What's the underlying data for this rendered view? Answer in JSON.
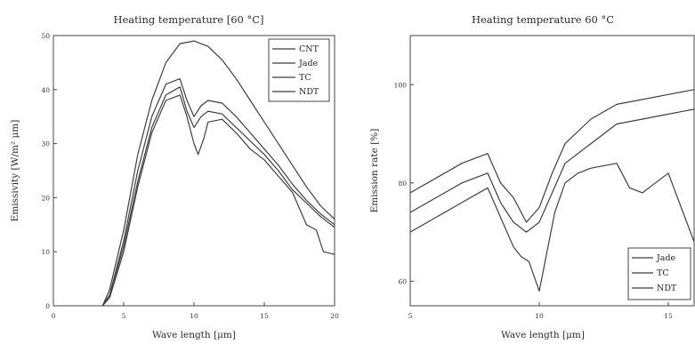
{
  "chart_data": [
    {
      "type": "line",
      "title": "Heating temperature [60 °C]",
      "xlabel": "Wave length [μm]",
      "ylabel": "Emissivity [W/m² μm]",
      "xlim": [
        0,
        20
      ],
      "ylim": [
        0,
        50
      ],
      "xticks": [
        "0",
        "5",
        "10",
        "15",
        "20"
      ],
      "yticks": [
        "0",
        "10",
        "20",
        "30",
        "40",
        "50"
      ],
      "legend": "top-right",
      "series": [
        {
          "name": "CNT",
          "x": [
            3.5,
            4,
            5,
            6,
            7,
            8,
            9,
            10,
            11,
            12,
            13,
            14,
            15,
            16,
            17,
            18,
            19,
            20
          ],
          "y": [
            0,
            3,
            14,
            28,
            38,
            45,
            48.5,
            49,
            48,
            45.5,
            42,
            38,
            34,
            30,
            26,
            22,
            18.5,
            16
          ]
        },
        {
          "name": "Jade",
          "x": [
            3.5,
            4,
            5,
            6,
            7,
            8,
            9,
            9.5,
            10,
            10.5,
            11,
            12,
            13,
            14,
            15,
            16,
            17,
            18,
            19,
            20
          ],
          "y": [
            0,
            2,
            12,
            25,
            35,
            41,
            42,
            38,
            35,
            37,
            38,
            37.5,
            35,
            32,
            29,
            26,
            22.5,
            19.5,
            17,
            15
          ]
        },
        {
          "name": "TC",
          "x": [
            3.5,
            4,
            5,
            6,
            7,
            8,
            9,
            9.5,
            10,
            10.5,
            11,
            12,
            13,
            14,
            15,
            16,
            17,
            18,
            19,
            20
          ],
          "y": [
            0,
            2,
            11,
            23,
            33,
            39,
            40.5,
            36,
            33,
            35,
            36,
            35.5,
            33,
            30.5,
            28,
            25,
            21.5,
            19,
            16.5,
            14.5
          ]
        },
        {
          "name": "NDT",
          "x": [
            3.5,
            4,
            5,
            6,
            7,
            8,
            9,
            9.5,
            10,
            10.3,
            10.7,
            11,
            12,
            13,
            14,
            15,
            16,
            17,
            18,
            18.7,
            19.2,
            20
          ],
          "y": [
            0,
            1.5,
            10,
            22,
            32,
            38,
            39,
            35,
            30,
            28,
            31,
            34,
            34.5,
            32,
            29,
            27,
            24,
            21,
            15,
            14,
            10,
            9.5
          ]
        }
      ]
    },
    {
      "type": "line",
      "title": "Heating temperature 60 °C",
      "xlabel": "Wave length [μm]",
      "ylabel": "Emission rate [%]",
      "xlim": [
        5,
        16
      ],
      "ylim": [
        55,
        110
      ],
      "xticks": [
        "5",
        "10",
        "15"
      ],
      "yticks": [
        "60",
        "80",
        "100"
      ],
      "legend": "bottom-right",
      "series": [
        {
          "name": "Jade",
          "x": [
            5,
            6,
            7,
            8,
            8.5,
            9,
            9.5,
            10,
            10.5,
            11,
            12,
            13,
            14,
            15,
            16
          ],
          "y": [
            78,
            81,
            84,
            86,
            80,
            77,
            72,
            75,
            82,
            88,
            93,
            96,
            97,
            98,
            99
          ]
        },
        {
          "name": "TC",
          "x": [
            5,
            6,
            7,
            8,
            8.5,
            9,
            9.5,
            10,
            10.5,
            11,
            12,
            13,
            14,
            15,
            16
          ],
          "y": [
            74,
            77,
            80,
            82,
            76,
            72,
            70,
            72,
            78,
            84,
            88,
            92,
            93,
            94,
            95
          ]
        },
        {
          "name": "NDT",
          "x": [
            5,
            6,
            7,
            8,
            8.5,
            9,
            9.3,
            9.6,
            10,
            10.3,
            10.6,
            11,
            11.5,
            12,
            13,
            13.5,
            14,
            14.5,
            15,
            16
          ],
          "y": [
            70,
            73,
            76,
            79,
            73,
            67,
            65,
            64,
            58,
            66,
            74,
            80,
            82,
            83,
            84,
            79,
            78,
            80,
            82,
            68
          ]
        }
      ]
    }
  ]
}
